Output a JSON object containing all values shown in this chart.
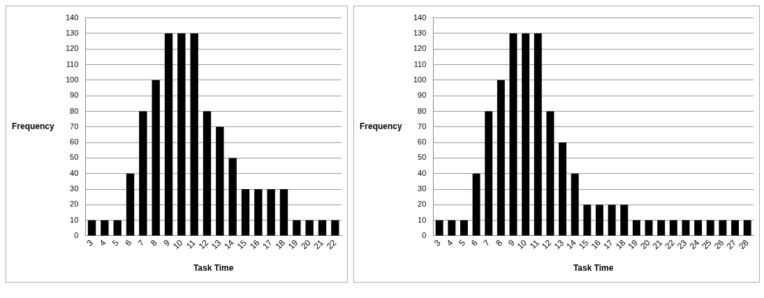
{
  "chart_data": [
    {
      "type": "bar",
      "xlabel": "Task Time",
      "ylabel": "Frequency",
      "categories": [
        "3",
        "4",
        "5",
        "6",
        "7",
        "8",
        "9",
        "10",
        "11",
        "12",
        "13",
        "14",
        "15",
        "16",
        "17",
        "18",
        "19",
        "20",
        "21",
        "22"
      ],
      "values": [
        10,
        10,
        10,
        40,
        80,
        100,
        130,
        130,
        130,
        80,
        70,
        50,
        30,
        30,
        30,
        30,
        10,
        10,
        10,
        10
      ],
      "color": "#000000",
      "ylim": [
        0,
        140
      ],
      "yticks": [
        0,
        10,
        20,
        30,
        40,
        50,
        60,
        70,
        80,
        90,
        100,
        110,
        120,
        130,
        140
      ],
      "grid": "y",
      "legend": false
    },
    {
      "type": "bar",
      "xlabel": "Task Time",
      "ylabel": "Frequency",
      "categories": [
        "3",
        "4",
        "5",
        "6",
        "7",
        "8",
        "9",
        "10",
        "11",
        "12",
        "13",
        "14",
        "15",
        "16",
        "17",
        "18",
        "19",
        "20",
        "21",
        "22",
        "23",
        "24",
        "25",
        "26",
        "27",
        "28"
      ],
      "values": [
        10,
        10,
        10,
        40,
        80,
        100,
        130,
        130,
        130,
        80,
        60,
        40,
        20,
        20,
        20,
        20,
        10,
        10,
        10,
        10,
        10,
        10,
        10,
        10,
        10,
        10
      ],
      "color": "#000000",
      "ylim": [
        0,
        140
      ],
      "yticks": [
        0,
        10,
        20,
        30,
        40,
        50,
        60,
        70,
        80,
        90,
        100,
        110,
        120,
        130,
        140
      ],
      "grid": "y",
      "legend": false
    }
  ]
}
